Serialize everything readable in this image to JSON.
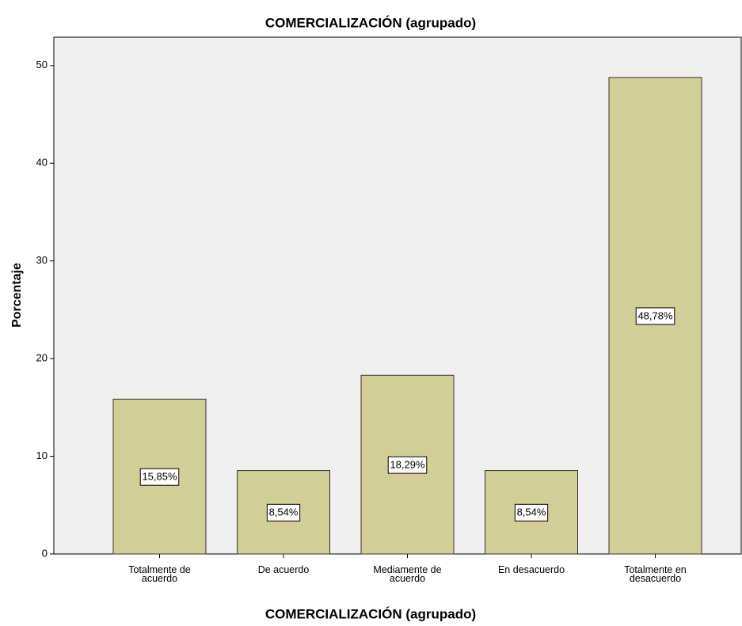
{
  "chart_data": {
    "type": "bar",
    "title": "COMERCIALIZACIÓN (agrupado)",
    "x_label": "COMERCIALIZACIÓN (agrupado)",
    "y_label": "Porcentaje",
    "categories": [
      "Totalmente de acuerdo",
      "De acuerdo",
      "Mediamente de acuerdo",
      "En desacuerdo",
      "Totalmente en desacuerdo"
    ],
    "values": [
      15.85,
      8.54,
      18.29,
      8.54,
      48.78
    ],
    "value_labels": [
      "15,85%",
      "8,54%",
      "18,29%",
      "8,54%",
      "48,78%"
    ],
    "color": "#d3ce97",
    "ylim": [
      0,
      52.9
    ],
    "yticks": [
      0,
      10,
      20,
      30,
      40,
      50
    ],
    "grid": false
  }
}
